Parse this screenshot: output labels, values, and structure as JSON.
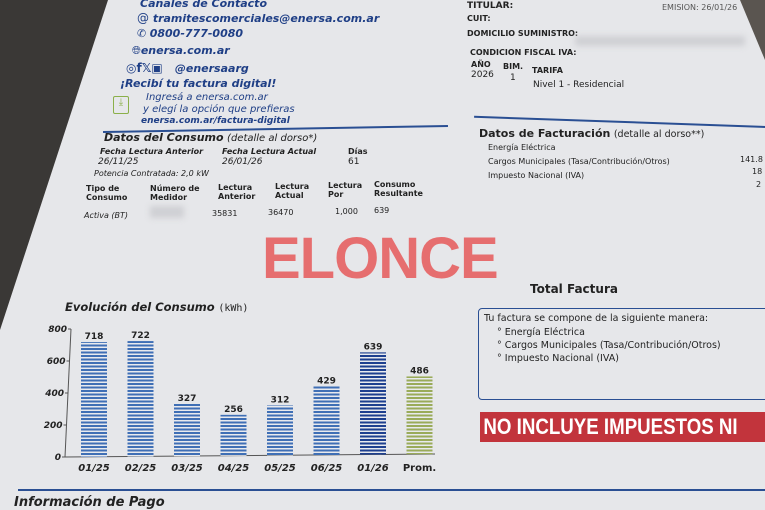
{
  "contact": {
    "heading": "Canales de Contacto",
    "email": "tramitescomerciales@enersa.com.ar",
    "phone": "0800-777-0080",
    "web": "enersa.com.ar",
    "social": "@enersaarg",
    "digital_title": "¡Recibí tu factura digital!",
    "digital_line1": "Ingresá a enersa.com.ar",
    "digital_line2": "y elegí la opción que prefieras",
    "digital_url": "enersa.com.ar/factura-digital"
  },
  "client": {
    "titular_label": "TITULAR:",
    "cuit_label": "CUIT:",
    "domicilio_label": "DOMICILIO SUMINISTRO:",
    "condicion_label": "CONDICION FISCAL IVA:",
    "emision": "EMISION: 26/01/26",
    "anio_label": "AÑO",
    "anio": "2026",
    "bim_label": "BIM.",
    "bim": "1",
    "tarifa_label": "TARIFA",
    "tarifa": "Nivel 1 - Residencial"
  },
  "consumo": {
    "title": "Datos del Consumo",
    "subtitle": "(detalle al dorso*)",
    "fecha_anterior_label": "Fecha Lectura Anterior",
    "fecha_anterior": "26/11/25",
    "fecha_actual_label": "Fecha Lectura Actual",
    "fecha_actual": "26/01/26",
    "dias_label": "Días",
    "dias": "61",
    "potencia": "Potencia Contratada: 2,0 kW",
    "headers": [
      "Tipo de Consumo",
      "Número de Medidor",
      "Lectura Anterior",
      "Lectura Actual",
      "Lectura Por",
      "Consumo Resultante"
    ],
    "row": [
      "Activa (BT)",
      "",
      "35831",
      "36470",
      "1,000",
      "639"
    ]
  },
  "facturacion": {
    "title": "Datos de Facturación",
    "subtitle": "(detalle al dorso**)",
    "items": [
      "Energía Eléctrica",
      "Cargos Municipales (Tasa/Contribución/Otros)",
      "Impuesto Nacional (IVA)"
    ],
    "amounts": [
      "141.8",
      "18",
      "2"
    ]
  },
  "total": {
    "title": "Total Factura",
    "intro": "Tu factura se compone de la siguiente manera:",
    "items": [
      "° Energía Eléctrica",
      "° Cargos Municipales (Tasa/Contribución/Otros)",
      "° Impuesto Nacional (IVA)"
    ],
    "banner": "NO INCLUYE IMPUESTOS NI TASAS P"
  },
  "watermark": "ELONCE",
  "footer_heading": "Información de Pago",
  "chart_data": {
    "type": "bar",
    "title": "Evolución del Consumo",
    "unit": "(kWh)",
    "categories": [
      "01/25",
      "02/25",
      "03/25",
      "04/25",
      "05/25",
      "06/25",
      "01/26",
      "Prom."
    ],
    "values": [
      718,
      722,
      327,
      256,
      312,
      429,
      639,
      486
    ],
    "ylim": [
      0,
      800
    ],
    "yticks": [
      "0",
      "200",
      "400",
      "600",
      "800"
    ],
    "colors": {
      "history": "#3f6fb5",
      "current": "#1d3f8f",
      "average": "#9aab5a"
    }
  }
}
